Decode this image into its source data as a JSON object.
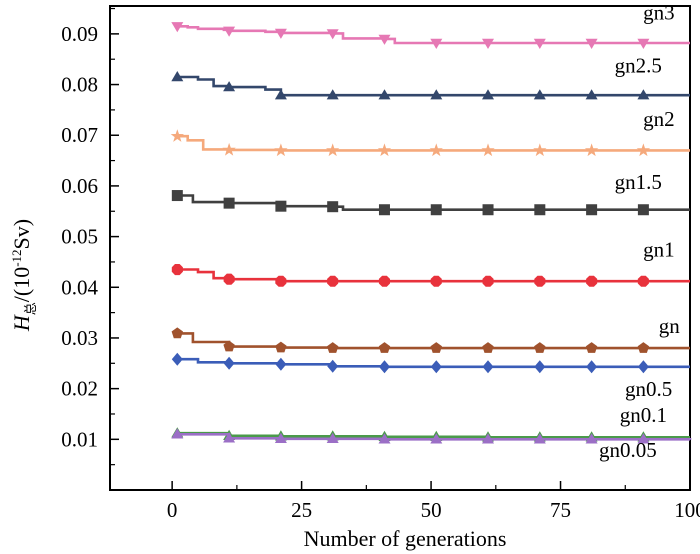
{
  "chart_data": {
    "type": "line",
    "xlabel": "Number of generations",
    "ylabel": {
      "main": "H",
      "sub": "总",
      "unit_prefix": "/(10",
      "unit_exp": "-12",
      "unit_suffix": "Sv)"
    },
    "xlim": [
      -12,
      100
    ],
    "ylim": [
      0,
      0.0955
    ],
    "x_ticks": [
      0,
      25,
      50,
      75,
      100
    ],
    "x_tick_labels": [
      "0",
      "25",
      "50",
      "75",
      "100"
    ],
    "y_ticks": [
      0.01,
      0.02,
      0.03,
      0.04,
      0.05,
      0.06,
      0.07,
      0.08,
      0.09
    ],
    "y_tick_labels": [
      "0.01",
      "0.02",
      "0.03",
      "0.04",
      "0.05",
      "0.06",
      "0.07",
      "0.08",
      "0.09"
    ],
    "grid": false,
    "series": [
      {
        "name": "gn3",
        "color": "#e678b4",
        "marker": "triangle-down",
        "x": [
          1,
          3,
          5,
          10,
          11,
          18,
          21,
          30,
          31,
          33,
          41,
          43,
          51,
          61,
          71,
          81,
          91,
          100
        ],
        "y": [
          0.0915,
          0.0913,
          0.091,
          0.0908,
          0.0906,
          0.0904,
          0.0902,
          0.0902,
          0.0901,
          0.0891,
          0.089,
          0.0882,
          0.0882,
          0.0882,
          0.0882,
          0.0882,
          0.0882,
          0.0882
        ],
        "label_pos": [
          94,
          0.0928
        ]
      },
      {
        "name": "gn2.5",
        "color": "#33476b",
        "marker": "triangle-up",
        "x": [
          1,
          5,
          8,
          11,
          18,
          21,
          31,
          41,
          51,
          61,
          71,
          81,
          91,
          100
        ],
        "y": [
          0.0815,
          0.081,
          0.0797,
          0.0795,
          0.079,
          0.0779,
          0.0779,
          0.0779,
          0.0779,
          0.0779,
          0.0779,
          0.0779,
          0.0779,
          0.0779
        ],
        "label_pos": [
          90,
          0.0824
        ]
      },
      {
        "name": "gn2",
        "color": "#f5a97c",
        "marker": "star",
        "x": [
          1,
          3,
          6,
          11,
          21,
          31,
          41,
          51,
          61,
          71,
          81,
          91,
          100
        ],
        "y": [
          0.0698,
          0.069,
          0.0672,
          0.0671,
          0.067,
          0.067,
          0.067,
          0.067,
          0.067,
          0.067,
          0.067,
          0.067,
          0.067
        ],
        "label_pos": [
          94,
          0.0718
        ]
      },
      {
        "name": "gn1.5",
        "color": "#404040",
        "marker": "square",
        "x": [
          1,
          4,
          11,
          21,
          31,
          33,
          41,
          51,
          61,
          71,
          81,
          91,
          100
        ],
        "y": [
          0.0581,
          0.0568,
          0.0566,
          0.056,
          0.0559,
          0.0553,
          0.0553,
          0.0553,
          0.0553,
          0.0553,
          0.0553,
          0.0553,
          0.0553
        ],
        "label_pos": [
          90,
          0.0594
        ]
      },
      {
        "name": "gn1",
        "color": "#e8323c",
        "marker": "octagon",
        "x": [
          1,
          5,
          8,
          11,
          21,
          31,
          41,
          51,
          61,
          71,
          81,
          91,
          100
        ],
        "y": [
          0.0435,
          0.043,
          0.0418,
          0.0416,
          0.0412,
          0.0412,
          0.0412,
          0.0412,
          0.0412,
          0.0412,
          0.0412,
          0.0412,
          0.0412
        ],
        "label_pos": [
          94,
          0.0461
        ]
      },
      {
        "name": "gn",
        "color": "#a0522d",
        "marker": "pentagon",
        "x": [
          1,
          4,
          11,
          21,
          31,
          41,
          51,
          61,
          71,
          81,
          91,
          100
        ],
        "y": [
          0.0309,
          0.0292,
          0.0283,
          0.0281,
          0.028,
          0.028,
          0.028,
          0.028,
          0.028,
          0.028,
          0.028,
          0.028
        ],
        "label_pos": [
          96,
          0.031
        ]
      },
      {
        "name": "gn0.5",
        "color": "#3b5db8",
        "marker": "diamond",
        "x": [
          1,
          5,
          11,
          21,
          31,
          41,
          51,
          61,
          71,
          81,
          91,
          100
        ],
        "y": [
          0.0258,
          0.0252,
          0.025,
          0.0248,
          0.0244,
          0.0243,
          0.0243,
          0.0243,
          0.0243,
          0.0243,
          0.0243,
          0.0243
        ],
        "label_pos": [
          92,
          0.0185
        ]
      },
      {
        "name": "gn0.1",
        "color": "#4a9a4a",
        "marker": "triangle-up",
        "x": [
          1,
          11,
          21,
          31,
          41,
          51,
          61,
          71,
          81,
          91,
          100
        ],
        "y": [
          0.0112,
          0.0107,
          0.0106,
          0.0106,
          0.0105,
          0.0105,
          0.0104,
          0.0104,
          0.0104,
          0.0104,
          0.0104
        ],
        "label_pos": [
          91,
          0.0134
        ]
      },
      {
        "name": "gn0.05",
        "color": "#9b6fc6",
        "marker": "triangle-up",
        "x": [
          1,
          11,
          21,
          31,
          41,
          51,
          61,
          71,
          81,
          91,
          100
        ],
        "y": [
          0.011,
          0.0102,
          0.0101,
          0.0101,
          0.01,
          0.01,
          0.01,
          0.01,
          0.01,
          0.01,
          0.0099
        ],
        "label_pos": [
          88,
          0.0065
        ]
      }
    ]
  }
}
